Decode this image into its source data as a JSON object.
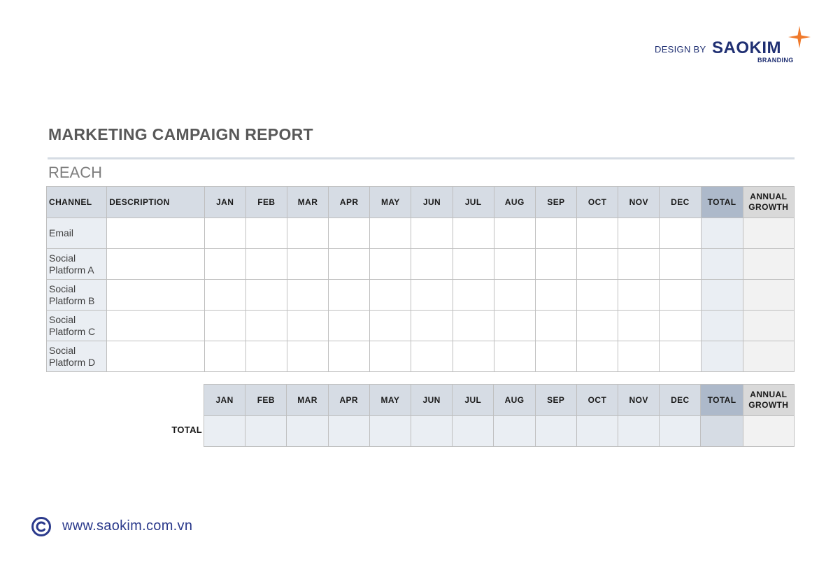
{
  "brand": {
    "design_by": "DESIGN BY",
    "name": "SAOKIM",
    "sub": "BRANDING",
    "color": "#1f2f72",
    "accent": "#f07a2c"
  },
  "title": "MARKETING CAMPAIGN REPORT",
  "section": "REACH",
  "table": {
    "headers": [
      "CHANNEL",
      "DESCRIPTION",
      "JAN",
      "FEB",
      "MAR",
      "APR",
      "MAY",
      "JUN",
      "JUL",
      "AUG",
      "SEP",
      "OCT",
      "NOV",
      "DEC",
      "TOTAL",
      "ANNUAL GROWTH"
    ],
    "rows": [
      {
        "channel": "Email"
      },
      {
        "channel": "Social Platform A"
      },
      {
        "channel": "Social Platform B"
      },
      {
        "channel": "Social Platform C"
      },
      {
        "channel": "Social Platform D"
      }
    ]
  },
  "summary": {
    "headers": [
      "JAN",
      "FEB",
      "MAR",
      "APR",
      "MAY",
      "JUN",
      "JUL",
      "AUG",
      "SEP",
      "OCT",
      "NOV",
      "DEC",
      "TOTAL",
      "ANNUAL GROWTH"
    ],
    "label": "TOTAL"
  },
  "footer": {
    "url": "www.saokim.com.vn",
    "icon": "copyright-icon"
  }
}
